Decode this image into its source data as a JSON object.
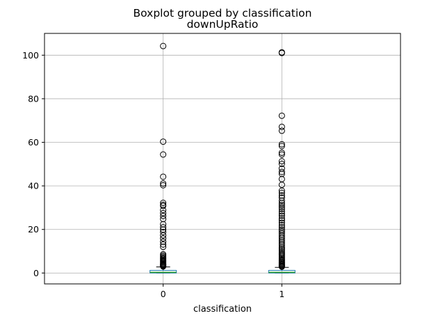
{
  "chart_data": {
    "type": "boxplot",
    "suptitle": "Boxplot grouped by classification",
    "title": "downUpRatio",
    "xlabel": "classification",
    "ylabel": "",
    "categories": [
      "0",
      "1"
    ],
    "ylim": [
      -5,
      110
    ],
    "yticks": [
      0,
      20,
      40,
      60,
      80,
      100
    ],
    "grid": true,
    "box_color": "#1f77b4",
    "median_color": "#2ca02c",
    "whisker_color": "#000000",
    "boxes": [
      {
        "name": "0",
        "q1": 0.0,
        "median": 0.3,
        "q3": 1.2,
        "whisker_low": 0.0,
        "whisker_high": 2.8,
        "fliers": [
          104.2,
          60.3,
          54.4,
          44.2,
          41.1,
          40.3,
          32.2,
          31.3,
          30.8,
          28.9,
          27.5,
          26.2,
          24.8,
          22.4,
          21.0,
          19.9,
          18.8,
          17.3,
          15.9,
          14.4,
          13.1,
          12.0,
          8.6,
          8.0,
          7.5,
          7.0,
          6.6,
          6.2,
          5.8,
          5.4,
          5.0,
          4.6,
          4.2,
          3.9,
          3.6,
          3.3,
          3.0
        ]
      },
      {
        "name": "1",
        "q1": 0.0,
        "median": 0.3,
        "q3": 1.2,
        "whisker_low": 0.0,
        "whisker_high": 2.6,
        "fliers": [
          101.3,
          101.0,
          72.2,
          67.1,
          65.3,
          59.1,
          58.3,
          55.2,
          54.4,
          51.3,
          50.1,
          48.0,
          46.4,
          45.5,
          43.1,
          40.5,
          37.8,
          36.8,
          35.6,
          34.6,
          33.2,
          32.1,
          31.2,
          30.3,
          29.4,
          28.3,
          27.3,
          26.3,
          25.1,
          24.2,
          23.1,
          22.0,
          21.0,
          20.0,
          19.2,
          18.3,
          17.4,
          16.6,
          15.8,
          15.0,
          14.2,
          13.4,
          12.6,
          11.8,
          11.1,
          10.4,
          9.7,
          9.0,
          8.4,
          7.8,
          7.2,
          6.7,
          6.2,
          5.7,
          5.2,
          4.8,
          4.4,
          4.0,
          3.6,
          3.2,
          2.9
        ]
      }
    ]
  }
}
